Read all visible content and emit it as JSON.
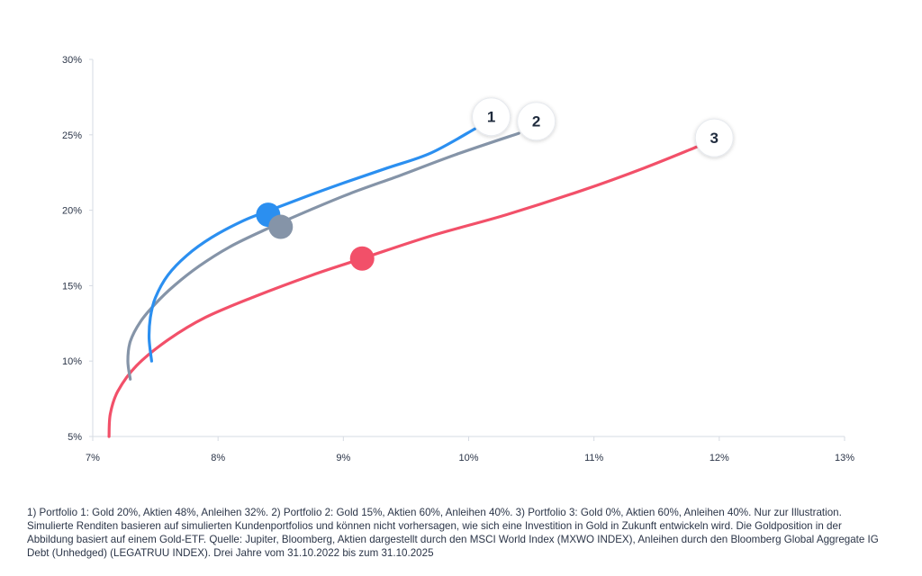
{
  "chart_data": {
    "type": "line",
    "title": "",
    "xlabel": "",
    "ylabel": "",
    "xlim": [
      7,
      13
    ],
    "ylim": [
      5,
      30
    ],
    "x_ticks": [
      7,
      8,
      9,
      10,
      11,
      12,
      13
    ],
    "y_ticks": [
      5,
      10,
      15,
      20,
      25,
      30
    ],
    "x_tick_labels": [
      "7%",
      "8%",
      "9%",
      "10%",
      "11%",
      "12%",
      "13%"
    ],
    "y_tick_labels": [
      "5%",
      "10%",
      "15%",
      "20%",
      "25%",
      "30%"
    ],
    "grid": false,
    "series": [
      {
        "name": "1",
        "label": "1",
        "color": "#2b8ff0",
        "x": [
          7.47,
          7.45,
          7.46,
          7.5,
          7.6,
          7.75,
          7.95,
          8.2,
          8.4,
          8.7,
          9.0,
          9.35,
          9.7,
          10.05
        ],
        "y": [
          10.0,
          11.5,
          12.9,
          14.2,
          15.7,
          17.0,
          18.2,
          19.3,
          19.95,
          20.9,
          21.8,
          22.8,
          23.8,
          25.4
        ],
        "marker": {
          "x": 8.4,
          "y": 19.7
        }
      },
      {
        "name": "2",
        "label": "2",
        "color": "#8594a8",
        "x": [
          7.3,
          7.28,
          7.3,
          7.38,
          7.5,
          7.65,
          7.85,
          8.1,
          8.4,
          8.7,
          9.05,
          9.45,
          9.9,
          10.4
        ],
        "y": [
          8.8,
          10.0,
          11.3,
          12.6,
          13.8,
          15.0,
          16.3,
          17.6,
          18.8,
          19.9,
          21.1,
          22.3,
          23.7,
          25.1
        ],
        "marker": {
          "x": 8.5,
          "y": 18.9
        }
      },
      {
        "name": "3",
        "label": "3",
        "color": "#f25069",
        "x": [
          7.13,
          7.14,
          7.2,
          7.35,
          7.6,
          7.9,
          8.3,
          8.75,
          9.15,
          9.7,
          10.3,
          10.9,
          11.4,
          11.85
        ],
        "y": [
          5.0,
          6.5,
          8.0,
          9.7,
          11.4,
          12.9,
          14.3,
          15.7,
          16.8,
          18.3,
          19.7,
          21.3,
          22.8,
          24.3
        ],
        "marker": {
          "x": 9.15,
          "y": 16.8
        }
      }
    ],
    "labels": [
      {
        "text": "1",
        "x": 10.18,
        "y": 26.2
      },
      {
        "text": "2",
        "x": 10.54,
        "y": 25.9
      },
      {
        "text": "3",
        "x": 11.96,
        "y": 24.8
      }
    ]
  },
  "footnote": "1) Portfolio 1: Gold 20%, Aktien 48%, Anleihen 32%. 2) Portfolio 2: Gold 15%, Aktien 60%, Anleihen 40%. 3) Portfolio 3: Gold 0%, Aktien 60%, Anleihen 40%. Nur zur Illustration. Simulierte Renditen basieren auf simulierten Kundenportfolios und können nicht vorhersagen, wie sich eine Investition in Gold in Zukunft entwickeln wird. Die Goldposition in der Abbildung basiert auf einem Gold-ETF. Quelle: Jupiter, Bloomberg, Aktien dargestellt durch den MSCI World Index (MXWO INDEX), Anleihen durch den Bloomberg Global Aggregate IG Debt (Unhedged) (LEGATRUU INDEX). Drei Jahre vom 31.10.2022 bis zum 31.10.2025"
}
